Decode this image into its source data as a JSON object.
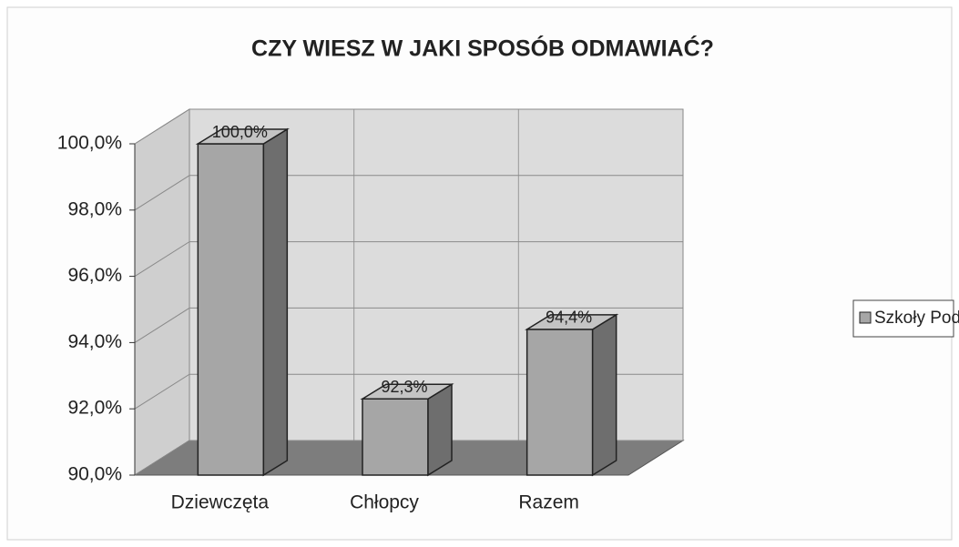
{
  "chart_data": {
    "type": "bar3d",
    "title": "CZY WIESZ W JAKI SPOSÓB ODMAWIAĆ?",
    "categories": [
      "Dziewczęta",
      "Chłopcy",
      "Razem"
    ],
    "series": [
      {
        "name": "Szkoły Podstwowe",
        "color": "#a6a6a6",
        "values": [
          100,
          92.3,
          94.4
        ],
        "value_labels": [
          "100,0%",
          "92,3%",
          "94,4%"
        ]
      }
    ],
    "ylim": [
      90,
      100
    ],
    "yticks": [
      {
        "value": 90,
        "label": "90,0%"
      },
      {
        "value": 92,
        "label": "92,0%"
      },
      {
        "value": 94,
        "label": "94,0%"
      },
      {
        "value": 96,
        "label": "96,0%"
      },
      {
        "value": 98,
        "label": "98,0%"
      },
      {
        "value": 100,
        "label": "100,0%"
      }
    ],
    "grid": true,
    "legend": "right"
  }
}
